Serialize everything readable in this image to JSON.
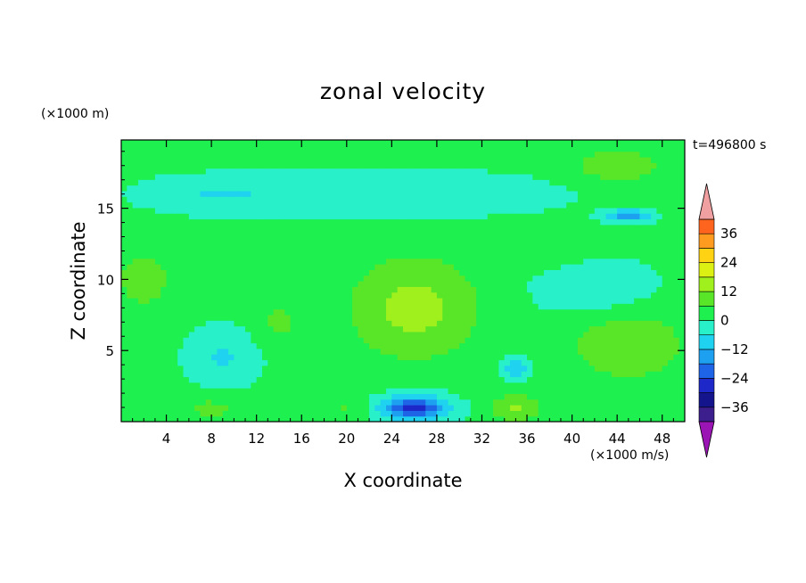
{
  "chart_data": {
    "type": "heatmap",
    "title": "zonal velocity",
    "xlabel": "X coordinate",
    "ylabel": "Z coordinate",
    "x_units": "(×1000 m/s)",
    "z_units": "(×1000 m)",
    "time_label": "t=496800 s",
    "xlim": [
      0,
      50
    ],
    "ylim": [
      0,
      19.8
    ],
    "x_ticks": [
      4,
      8,
      12,
      16,
      20,
      24,
      28,
      32,
      36,
      40,
      44,
      48
    ],
    "y_ticks": [
      5,
      10,
      15
    ],
    "colorbar": {
      "levels": [
        -42,
        -36,
        -30,
        -24,
        -18,
        -12,
        -6,
        0,
        6,
        12,
        18,
        24,
        30,
        36,
        42
      ],
      "tick_labels": [
        36,
        24,
        12,
        0,
        -12,
        -24,
        -36
      ],
      "colors": [
        "#5a1a9a",
        "#1414a0",
        "#1e28d2",
        "#1e5ae6",
        "#1e96f0",
        "#1ed2f0",
        "#1ef0c8",
        "#1ef080",
        "#32dc14",
        "#82e61e",
        "#c8f014",
        "#fafa14",
        "#ffc814",
        "#ff961e",
        "#ff641e",
        "#f03214",
        "#f0a0a0",
        "#9b14b4"
      ],
      "over_color": "#f0a0a0",
      "under_color": "#9b14b4"
    },
    "field": [
      {
        "x": 26,
        "z": 8,
        "value": 13,
        "sx": 5.5,
        "sz": 3.5
      },
      {
        "x": 26,
        "z": 1,
        "value": -28,
        "sx": 3,
        "sz": 0.9
      },
      {
        "x": 35,
        "z": 1,
        "value": 12,
        "sx": 2,
        "sz": 1
      },
      {
        "x": 35,
        "z": 3.8,
        "value": -14,
        "sx": 1,
        "sz": 0.8
      },
      {
        "x": 45,
        "z": 5.5,
        "value": 10,
        "sx": 5,
        "sz": 2.5
      },
      {
        "x": 44,
        "z": 18,
        "value": 9,
        "sx": 4,
        "sz": 1.2
      },
      {
        "x": 45,
        "z": 14.5,
        "value": -18,
        "sx": 2,
        "sz": 0.4
      },
      {
        "x": 2,
        "z": 10,
        "value": 8,
        "sx": 2.5,
        "sz": 2
      },
      {
        "x": 8,
        "z": 1,
        "value": 6,
        "sx": 3,
        "sz": 1
      },
      {
        "x": 9,
        "z": 4.5,
        "value": -8,
        "sx": 3,
        "sz": 2
      },
      {
        "x": 14,
        "z": 7,
        "value": 6,
        "sx": 2,
        "sz": 1.5
      },
      {
        "x": 20,
        "z": 1,
        "value": 5,
        "sx": 2,
        "sz": 1
      },
      {
        "x": 42,
        "z": 9.5,
        "value": -8,
        "sx": 5,
        "sz": 2
      },
      {
        "x": 24,
        "z": 16,
        "value": -7,
        "sx": 14,
        "sz": 1.5
      },
      {
        "x": 8,
        "z": 16,
        "value": -6,
        "sx": 6,
        "sz": 1.2
      },
      {
        "x": 38,
        "z": 12,
        "value": 3,
        "sx": 6,
        "sz": 1.5
      }
    ]
  }
}
